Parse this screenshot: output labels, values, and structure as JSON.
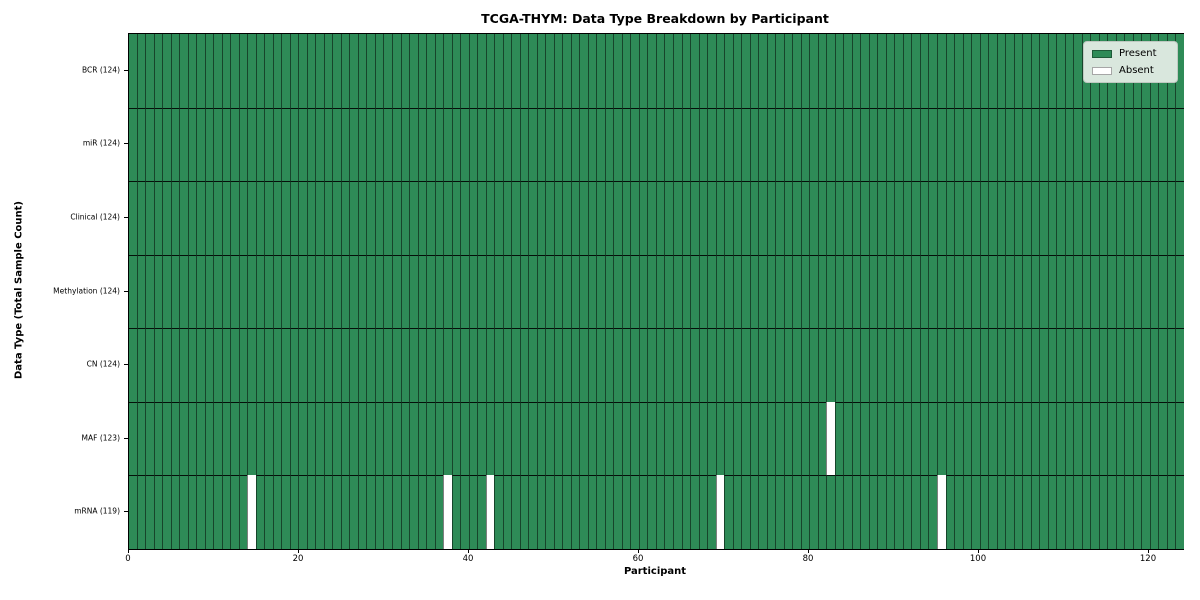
{
  "chart_data": {
    "type": "heatmap",
    "title": "TCGA-THYM: Data Type Breakdown by Participant",
    "xlabel": "Participant",
    "ylabel": "Data Type (Total Sample Count)",
    "n_participants": 124,
    "xlim": [
      0,
      124
    ],
    "x_ticks": [
      0,
      20,
      40,
      60,
      80,
      100,
      120
    ],
    "legend_position": "upper right",
    "grid": false,
    "colors": {
      "present": "#2e8b57",
      "absent": "#ffffff"
    },
    "legend": [
      {
        "label": "Present",
        "color": "#2e8b57"
      },
      {
        "label": "Absent",
        "color": "#ffffff"
      }
    ],
    "rows": [
      {
        "key": "bcr",
        "label": "BCR (124)",
        "data_type": "BCR",
        "present_count": 124,
        "absent_participants": []
      },
      {
        "key": "mir",
        "label": "miR (124)",
        "data_type": "miR",
        "present_count": 124,
        "absent_participants": []
      },
      {
        "key": "clinical",
        "label": "Clinical (124)",
        "data_type": "Clinical",
        "present_count": 124,
        "absent_participants": []
      },
      {
        "key": "methylation",
        "label": "Methylation (124)",
        "data_type": "Methylation",
        "present_count": 124,
        "absent_participants": []
      },
      {
        "key": "cn",
        "label": "CN (124)",
        "data_type": "CN",
        "present_count": 124,
        "absent_participants": []
      },
      {
        "key": "maf",
        "label": "MAF (123)",
        "data_type": "MAF",
        "present_count": 123,
        "absent_participants": [
          82
        ]
      },
      {
        "key": "mrna",
        "label": "mRNA (119)",
        "data_type": "mRNA",
        "present_count": 119,
        "absent_participants": [
          14,
          37,
          42,
          69,
          95
        ]
      }
    ]
  }
}
